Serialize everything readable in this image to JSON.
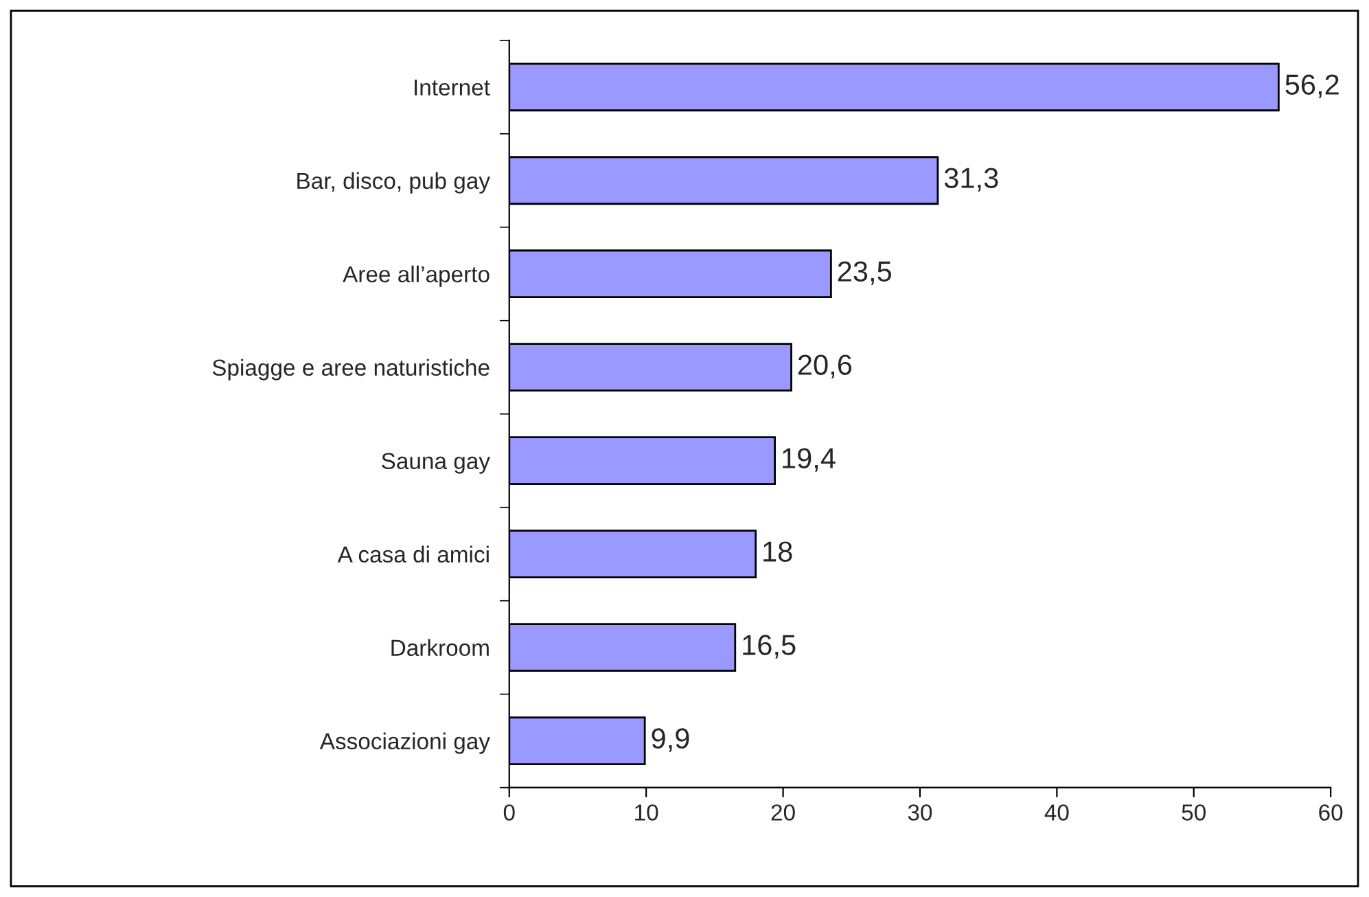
{
  "chart_data": {
    "type": "bar",
    "orientation": "horizontal",
    "categories": [
      "Internet",
      "Bar, disco, pub gay",
      "Aree all’aperto",
      "Spiagge e aree naturistiche",
      "Sauna gay",
      "A casa di amici",
      "Darkroom",
      "Associazioni gay"
    ],
    "values": [
      56.2,
      31.3,
      23.5,
      20.6,
      19.4,
      18,
      16.5,
      9.9
    ],
    "value_labels": [
      "56,2",
      "31,3",
      "23,5",
      "20,6",
      "19,4",
      "18",
      "16,5",
      "9,9"
    ],
    "color": "#9999ff",
    "xlim": [
      0,
      60
    ],
    "xticks": [
      0,
      10,
      20,
      30,
      40,
      50,
      60
    ],
    "grid": false,
    "legend": false
  }
}
